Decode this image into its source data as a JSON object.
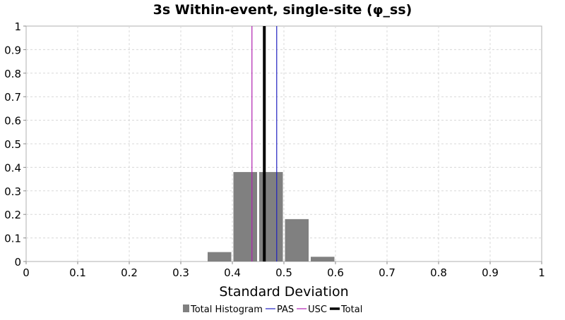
{
  "chart_data": {
    "type": "bar",
    "title": "3s Within-event, single-site (φ_ss)",
    "xlabel": "Standard Deviation",
    "ylabel": "",
    "xlim": [
      0,
      1
    ],
    "ylim": [
      0,
      1
    ],
    "x_ticks": [
      "0",
      "0.1",
      "0.2",
      "0.3",
      "0.4",
      "0.5",
      "0.6",
      "0.7",
      "0.8",
      "0.9",
      "1"
    ],
    "y_ticks": [
      "0",
      "0.1",
      "0.2",
      "0.3",
      "0.4",
      "0.5",
      "0.6",
      "0.7",
      "0.8",
      "0.9",
      "1"
    ],
    "grid": true,
    "legend_position": "bottom",
    "histogram": {
      "name": "Total Histogram",
      "color": "#808080",
      "bin_width": 0.05,
      "bins": [
        {
          "x": 0.375,
          "value": 0.04
        },
        {
          "x": 0.425,
          "value": 0.38
        },
        {
          "x": 0.475,
          "value": 0.38
        },
        {
          "x": 0.525,
          "value": 0.18
        },
        {
          "x": 0.575,
          "value": 0.02
        }
      ]
    },
    "vertical_lines": [
      {
        "name": "PAS",
        "x": 0.486,
        "color": "#2020c0",
        "width": "thin"
      },
      {
        "name": "USC",
        "x": 0.438,
        "color": "#b020b0",
        "width": "thin"
      },
      {
        "name": "Total",
        "x": 0.462,
        "color": "#000000",
        "width": "thick"
      }
    ],
    "legend": [
      {
        "label": "Total Histogram",
        "kind": "box",
        "color": "#808080"
      },
      {
        "label": "PAS",
        "kind": "line",
        "color": "#2020c0"
      },
      {
        "label": "USC",
        "kind": "line",
        "color": "#b020b0"
      },
      {
        "label": "Total",
        "kind": "thick-line",
        "color": "#000000"
      }
    ]
  }
}
